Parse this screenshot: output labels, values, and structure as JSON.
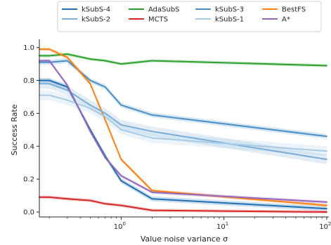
{
  "chart_data": {
    "type": "line",
    "xlabel": "Value noise variance σ",
    "ylabel": "Success Rate",
    "xscale": "log",
    "xlim": [
      0.16,
      105
    ],
    "ylim": [
      -0.03,
      1.05
    ],
    "xticks": [
      {
        "value": 1,
        "base": "10",
        "exp": "0"
      },
      {
        "value": 10,
        "base": "10",
        "exp": "1"
      },
      {
        "value": 100,
        "base": "10",
        "exp": "2"
      }
    ],
    "yticks": [
      {
        "value": 0.0,
        "label": "0.0"
      },
      {
        "value": 0.2,
        "label": "0.2"
      },
      {
        "value": 0.4,
        "label": "0.4"
      },
      {
        "value": 0.6,
        "label": "0.6"
      },
      {
        "value": 0.8,
        "label": "0.8"
      },
      {
        "value": 1.0,
        "label": "1.0"
      }
    ],
    "grid": false,
    "legend": "top, outside plot, 4 columns",
    "series": [
      {
        "name": "kSubS-4",
        "color": "#1f6fb4",
        "x": [
          0.16,
          0.2,
          0.3,
          0.5,
          0.7,
          1,
          2,
          100
        ],
        "y": [
          0.8,
          0.8,
          0.76,
          0.5,
          0.34,
          0.19,
          0.08,
          0.02
        ],
        "band": 0.015
      },
      {
        "name": "AdaSubS",
        "color": "#2ca02c",
        "x": [
          0.16,
          0.2,
          0.3,
          0.5,
          0.7,
          1,
          2,
          100
        ],
        "y": [
          0.95,
          0.95,
          0.96,
          0.93,
          0.92,
          0.9,
          0.92,
          0.89
        ],
        "band": 0.01
      },
      {
        "name": "kSubS-3",
        "color": "#4a90c8",
        "x": [
          0.16,
          0.2,
          0.3,
          0.5,
          0.7,
          1,
          2,
          100
        ],
        "y": [
          0.91,
          0.91,
          0.92,
          0.8,
          0.76,
          0.65,
          0.59,
          0.46
        ],
        "band": 0.015
      },
      {
        "name": "BestFS",
        "color": "#ff7f0e",
        "x": [
          0.16,
          0.2,
          0.3,
          0.5,
          0.7,
          1,
          2,
          100
        ],
        "y": [
          0.99,
          0.99,
          0.94,
          0.78,
          0.56,
          0.32,
          0.13,
          0.04
        ],
        "band": 0.01
      },
      {
        "name": "kSubS-2",
        "color": "#7aadd8",
        "x": [
          0.16,
          0.2,
          0.3,
          0.5,
          0.7,
          1,
          2,
          100
        ],
        "y": [
          0.78,
          0.78,
          0.74,
          0.65,
          0.6,
          0.53,
          0.49,
          0.32
        ],
        "band": 0.03
      },
      {
        "name": "MCTS",
        "color": "#d62728",
        "x": [
          0.16,
          0.2,
          0.3,
          0.5,
          0.7,
          1,
          2,
          100
        ],
        "y": [
          0.09,
          0.09,
          0.08,
          0.07,
          0.05,
          0.04,
          0.01,
          0.0
        ],
        "band": 0.01
      },
      {
        "name": "kSubS-1",
        "color": "#a9cbe6",
        "x": [
          0.16,
          0.2,
          0.3,
          0.5,
          0.7,
          1,
          2,
          100
        ],
        "y": [
          0.71,
          0.71,
          0.68,
          0.63,
          0.58,
          0.5,
          0.45,
          0.37
        ],
        "band": 0.03
      },
      {
        "name": "A*",
        "color": "#9467bd",
        "x": [
          0.16,
          0.2,
          0.3,
          0.5,
          0.7,
          1,
          2,
          100
        ],
        "y": [
          0.92,
          0.92,
          0.77,
          0.49,
          0.33,
          0.22,
          0.12,
          0.06
        ],
        "band": 0.01
      }
    ]
  }
}
